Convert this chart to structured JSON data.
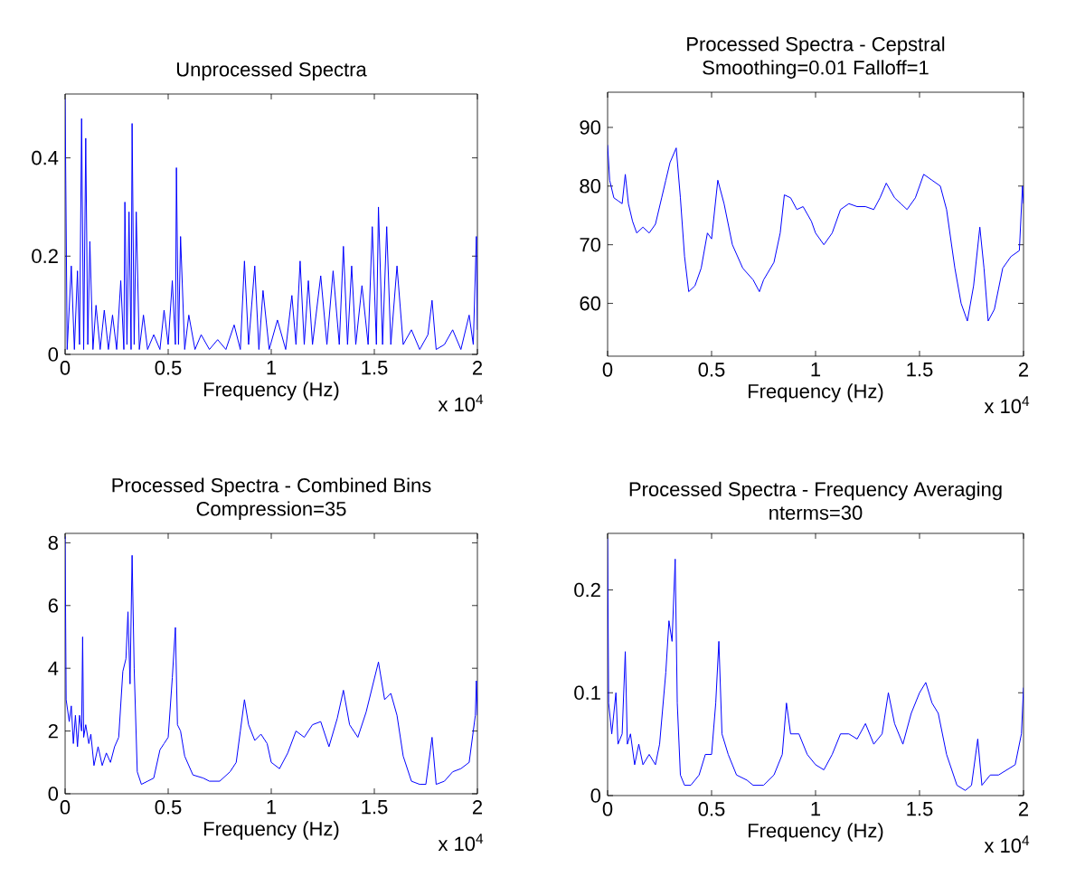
{
  "chart_data": [
    {
      "type": "line",
      "title": "Unprocessed Spectra",
      "xlabel": "Frequency (Hz)",
      "color": "#0000ff",
      "annotations": [
        "x 10$^{4}$"
      ],
      "xlim": [
        0,
        2
      ],
      "xticks": [
        0,
        0.5,
        1,
        1.5,
        2
      ],
      "ylim": [
        0,
        0.53
      ],
      "yticks": [
        0,
        0.2,
        0.4
      ],
      "x": [
        0,
        0.01,
        0.03,
        0.045,
        0.06,
        0.07,
        0.08,
        0.09,
        0.1,
        0.11,
        0.12,
        0.135,
        0.15,
        0.17,
        0.19,
        0.21,
        0.23,
        0.25,
        0.27,
        0.285,
        0.29,
        0.3,
        0.31,
        0.32,
        0.325,
        0.335,
        0.345,
        0.36,
        0.38,
        0.4,
        0.43,
        0.46,
        0.48,
        0.5,
        0.52,
        0.535,
        0.54,
        0.55,
        0.56,
        0.58,
        0.6,
        0.63,
        0.66,
        0.7,
        0.74,
        0.78,
        0.82,
        0.85,
        0.87,
        0.89,
        0.92,
        0.94,
        0.96,
        0.99,
        1.03,
        1.07,
        1.1,
        1.12,
        1.14,
        1.16,
        1.18,
        1.2,
        1.24,
        1.27,
        1.3,
        1.33,
        1.35,
        1.37,
        1.39,
        1.41,
        1.44,
        1.47,
        1.49,
        1.51,
        1.52,
        1.54,
        1.56,
        1.58,
        1.61,
        1.64,
        1.68,
        1.72,
        1.76,
        1.78,
        1.8,
        1.84,
        1.88,
        1.92,
        1.96,
        1.98,
        1.995,
        2
      ],
      "values": [
        0.52,
        0.01,
        0.18,
        0.01,
        0.17,
        0.02,
        0.48,
        0.01,
        0.44,
        0.02,
        0.23,
        0.01,
        0.1,
        0.01,
        0.09,
        0.01,
        0.08,
        0.01,
        0.15,
        0.01,
        0.31,
        0.02,
        0.29,
        0.01,
        0.47,
        0.02,
        0.29,
        0.01,
        0.08,
        0.01,
        0.04,
        0.01,
        0.09,
        0.02,
        0.15,
        0.02,
        0.38,
        0.02,
        0.24,
        0.01,
        0.08,
        0.01,
        0.04,
        0.01,
        0.03,
        0.01,
        0.06,
        0.01,
        0.19,
        0.02,
        0.18,
        0.01,
        0.13,
        0.01,
        0.07,
        0.01,
        0.12,
        0.02,
        0.19,
        0.02,
        0.15,
        0.02,
        0.16,
        0.02,
        0.17,
        0.02,
        0.22,
        0.02,
        0.18,
        0.02,
        0.14,
        0.02,
        0.26,
        0.02,
        0.3,
        0.02,
        0.26,
        0.02,
        0.18,
        0.02,
        0.05,
        0.01,
        0.04,
        0.11,
        0.01,
        0.02,
        0.05,
        0.01,
        0.08,
        0.02,
        0.24,
        0.05
      ]
    },
    {
      "type": "line",
      "title": "Processed Spectra - Cepstral",
      "subtitle": "Smoothing=0.01 Falloff=1",
      "xlabel": "Frequency (Hz)",
      "color": "#0000ff",
      "annotations": [
        "x 10$^{4}$"
      ],
      "xlim": [
        0,
        2
      ],
      "xticks": [
        0,
        0.5,
        1,
        1.5,
        2
      ],
      "ylim": [
        51,
        96
      ],
      "yticks": [
        60,
        70,
        80,
        90
      ],
      "x": [
        0,
        0.01,
        0.03,
        0.05,
        0.07,
        0.085,
        0.1,
        0.12,
        0.14,
        0.17,
        0.2,
        0.23,
        0.26,
        0.28,
        0.3,
        0.33,
        0.35,
        0.37,
        0.39,
        0.42,
        0.45,
        0.48,
        0.5,
        0.53,
        0.56,
        0.6,
        0.65,
        0.7,
        0.73,
        0.75,
        0.8,
        0.83,
        0.85,
        0.88,
        0.91,
        0.94,
        0.98,
        1,
        1.04,
        1.08,
        1.12,
        1.16,
        1.2,
        1.24,
        1.28,
        1.31,
        1.34,
        1.38,
        1.41,
        1.44,
        1.48,
        1.52,
        1.56,
        1.6,
        1.63,
        1.67,
        1.7,
        1.73,
        1.76,
        1.79,
        1.81,
        1.83,
        1.86,
        1.9,
        1.94,
        1.98,
        1.995,
        2
      ],
      "values": [
        87,
        81,
        78,
        77.5,
        77,
        82,
        77,
        74,
        72,
        73,
        72,
        73.5,
        78,
        81,
        84,
        86.5,
        78,
        68,
        62,
        63,
        66,
        72,
        71,
        81,
        77,
        70,
        66,
        64,
        62,
        64,
        67,
        72,
        78.5,
        78,
        76,
        76.5,
        74,
        72,
        70,
        72,
        76,
        77,
        76.5,
        76.5,
        76,
        78,
        80.5,
        78,
        77,
        76,
        78,
        82,
        81,
        80,
        76,
        66,
        60,
        57,
        63,
        73,
        66,
        57,
        59,
        66,
        68,
        69,
        80,
        77
      ]
    },
    {
      "type": "line",
      "title": "Processed Spectra - Combined Bins",
      "subtitle": "Compression=35",
      "xlabel": "Frequency (Hz)",
      "color": "#0000ff",
      "annotations": [
        "x 10$^{4}$"
      ],
      "xlim": [
        0,
        2
      ],
      "xticks": [
        0,
        0.5,
        1,
        1.5,
        2
      ],
      "ylim": [
        0,
        8.3
      ],
      "yticks": [
        0,
        2,
        4,
        6,
        8
      ],
      "x": [
        0,
        0.005,
        0.02,
        0.03,
        0.04,
        0.05,
        0.06,
        0.07,
        0.08,
        0.085,
        0.09,
        0.1,
        0.115,
        0.125,
        0.14,
        0.16,
        0.18,
        0.2,
        0.22,
        0.24,
        0.26,
        0.28,
        0.295,
        0.305,
        0.315,
        0.325,
        0.335,
        0.35,
        0.37,
        0.4,
        0.43,
        0.46,
        0.48,
        0.5,
        0.52,
        0.535,
        0.545,
        0.56,
        0.58,
        0.62,
        0.67,
        0.7,
        0.75,
        0.8,
        0.83,
        0.85,
        0.87,
        0.89,
        0.92,
        0.95,
        0.98,
        1,
        1.04,
        1.08,
        1.12,
        1.16,
        1.2,
        1.24,
        1.28,
        1.32,
        1.35,
        1.38,
        1.42,
        1.46,
        1.49,
        1.52,
        1.55,
        1.58,
        1.61,
        1.64,
        1.68,
        1.72,
        1.75,
        1.78,
        1.8,
        1.84,
        1.88,
        1.92,
        1.96,
        1.99,
        1.995,
        2
      ],
      "values": [
        8.2,
        3,
        2.3,
        2.8,
        1.6,
        2.5,
        1.5,
        2.5,
        2.0,
        5.0,
        1.8,
        2.2,
        1.6,
        1.9,
        0.9,
        1.5,
        0.9,
        1.3,
        1.0,
        1.5,
        1.8,
        3.9,
        4.3,
        5.8,
        3.5,
        7.6,
        4,
        0.7,
        0.3,
        0.4,
        0.5,
        1.4,
        1.6,
        1.8,
        3.7,
        5.3,
        2.2,
        2.0,
        1.2,
        0.6,
        0.5,
        0.4,
        0.4,
        0.7,
        1.0,
        2.0,
        3.0,
        2.2,
        1.7,
        1.9,
        1.6,
        1.0,
        0.8,
        1.3,
        2.0,
        1.8,
        2.2,
        2.3,
        1.5,
        2.4,
        3.3,
        2.2,
        1.8,
        2.6,
        3.4,
        4.2,
        3.0,
        3.2,
        2.5,
        1.2,
        0.4,
        0.3,
        0.3,
        1.8,
        0.3,
        0.4,
        0.7,
        0.8,
        1.0,
        2.5,
        3.6,
        2.5
      ]
    },
    {
      "type": "line",
      "title": "Processed Spectra - Frequency Averaging",
      "subtitle": "nterms=30",
      "xlabel": "Frequency (Hz)",
      "color": "#0000ff",
      "annotations": [
        "x 10$^{4}$"
      ],
      "xlim": [
        0,
        2
      ],
      "xticks": [
        0,
        0.5,
        1,
        1.5,
        2
      ],
      "ylim": [
        0,
        0.255
      ],
      "yticks": [
        0,
        0.1,
        0.2
      ],
      "x": [
        0,
        0.005,
        0.02,
        0.04,
        0.05,
        0.07,
        0.085,
        0.095,
        0.11,
        0.13,
        0.15,
        0.17,
        0.2,
        0.23,
        0.25,
        0.28,
        0.295,
        0.31,
        0.325,
        0.335,
        0.35,
        0.37,
        0.4,
        0.44,
        0.47,
        0.5,
        0.52,
        0.535,
        0.55,
        0.58,
        0.62,
        0.67,
        0.7,
        0.75,
        0.8,
        0.84,
        0.86,
        0.88,
        0.92,
        0.96,
        1,
        1.04,
        1.08,
        1.12,
        1.16,
        1.2,
        1.24,
        1.28,
        1.32,
        1.35,
        1.38,
        1.42,
        1.46,
        1.5,
        1.53,
        1.56,
        1.59,
        1.63,
        1.68,
        1.72,
        1.75,
        1.78,
        1.8,
        1.84,
        1.88,
        1.92,
        1.96,
        1.99,
        2
      ],
      "values": [
        0.25,
        0.09,
        0.06,
        0.1,
        0.05,
        0.06,
        0.14,
        0.05,
        0.06,
        0.03,
        0.05,
        0.03,
        0.04,
        0.03,
        0.05,
        0.12,
        0.17,
        0.15,
        0.23,
        0.09,
        0.02,
        0.01,
        0.01,
        0.02,
        0.04,
        0.04,
        0.09,
        0.15,
        0.06,
        0.04,
        0.02,
        0.015,
        0.01,
        0.01,
        0.02,
        0.04,
        0.09,
        0.06,
        0.06,
        0.04,
        0.03,
        0.025,
        0.04,
        0.06,
        0.06,
        0.055,
        0.07,
        0.05,
        0.06,
        0.1,
        0.07,
        0.05,
        0.08,
        0.1,
        0.11,
        0.09,
        0.08,
        0.04,
        0.01,
        0.005,
        0.01,
        0.055,
        0.01,
        0.02,
        0.02,
        0.025,
        0.03,
        0.06,
        0.105
      ]
    }
  ]
}
